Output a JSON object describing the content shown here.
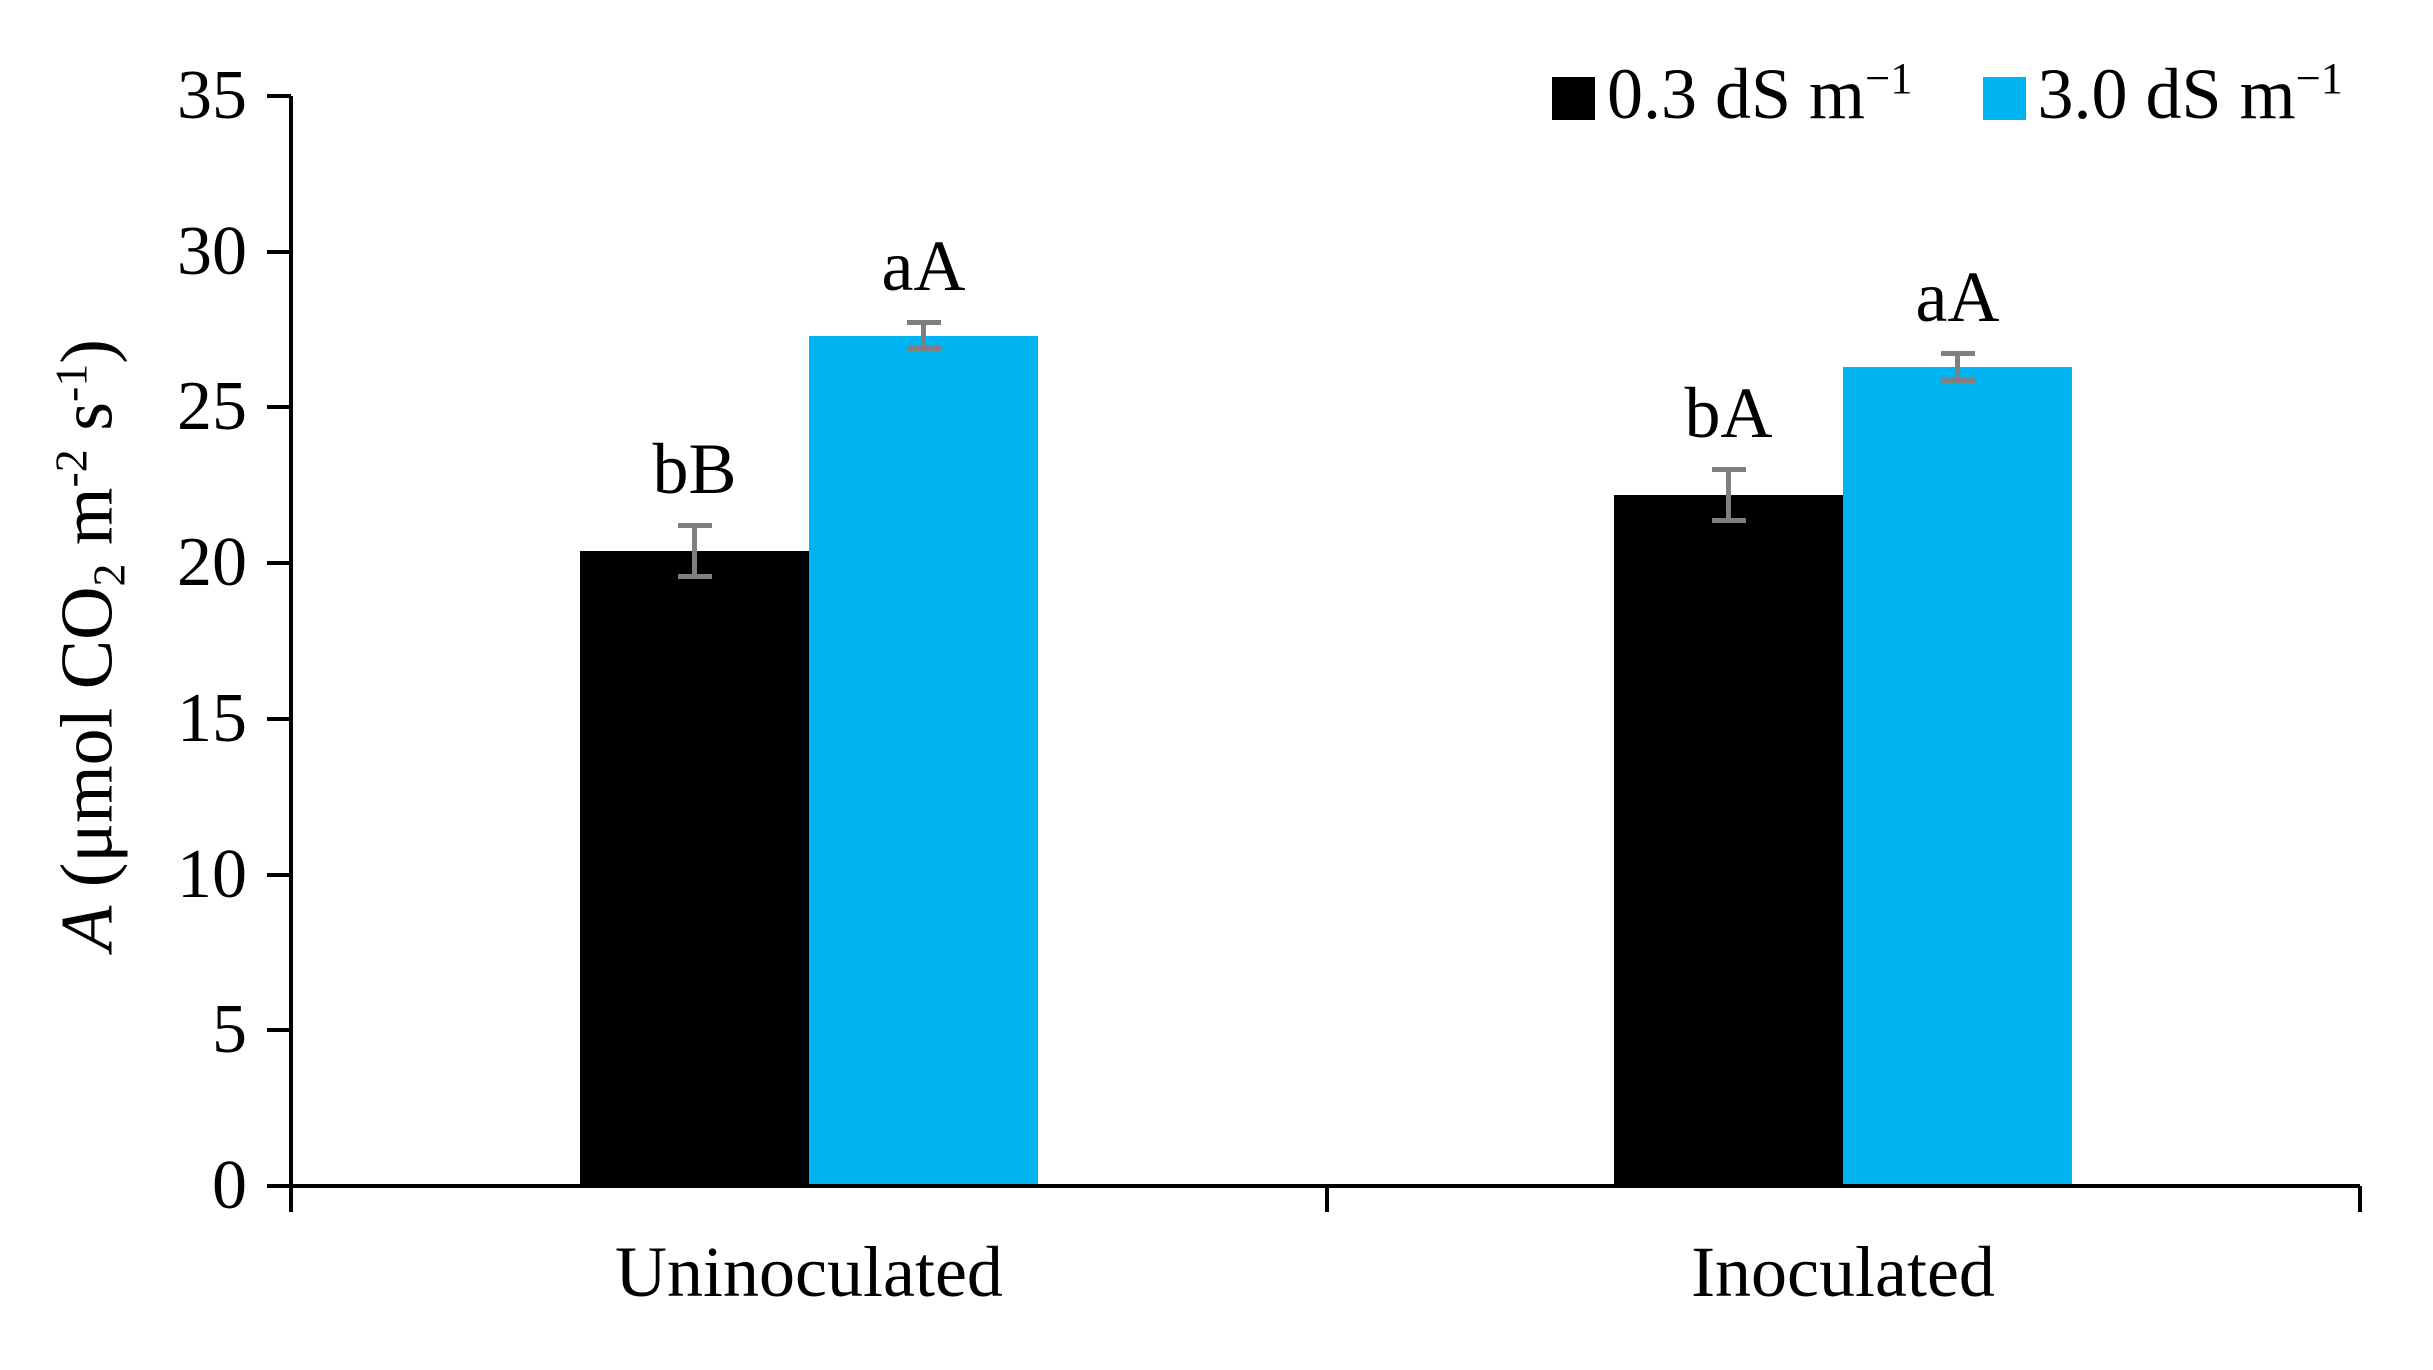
{
  "page": {
    "background": "#ffffff"
  },
  "chart_data": {
    "type": "bar",
    "title": "",
    "xlabel": "",
    "ylabel": "A (μmol CO2 m-2 s-1)",
    "ylabel_parts": [
      {
        "t": "A",
        "s": "ital"
      },
      {
        "t": " (μmol CO",
        "s": ""
      },
      {
        "t": "2",
        "s": "sub"
      },
      {
        "t": " m",
        "s": ""
      },
      {
        "t": "-2",
        "s": "sup"
      },
      {
        "t": " s",
        "s": ""
      },
      {
        "t": "-1",
        "s": "sup"
      },
      {
        "t": ")",
        "s": ""
      }
    ],
    "categories": [
      "Uninoculated",
      "Inoculated"
    ],
    "series": [
      {
        "name": "0.3 dS m−1",
        "color": "#000000",
        "values": [
          20.4,
          22.2
        ],
        "errors": [
          0.9,
          0.9
        ],
        "sig_labels": [
          "bB",
          "bA"
        ]
      },
      {
        "name": "3.0 dS m−1",
        "color": "#00B4F2",
        "values": [
          27.3,
          26.3
        ],
        "errors": [
          0.5,
          0.5
        ],
        "sig_labels": [
          "aA",
          "aA"
        ]
      }
    ],
    "ylim": [
      0,
      35
    ],
    "ytick_step": 5,
    "yticks": [
      0,
      5,
      10,
      15,
      20,
      25,
      30,
      35
    ],
    "grid": false,
    "legend_position": "top-right",
    "error_bar_color": "#7f7f7f",
    "legend": {
      "items": [
        {
          "label_base": "0.3 dS m",
          "label_sup": "−1",
          "color": "#000000"
        },
        {
          "label_base": "3.0 dS m",
          "label_sup": "−1",
          "color": "#00B4F2"
        }
      ]
    }
  }
}
